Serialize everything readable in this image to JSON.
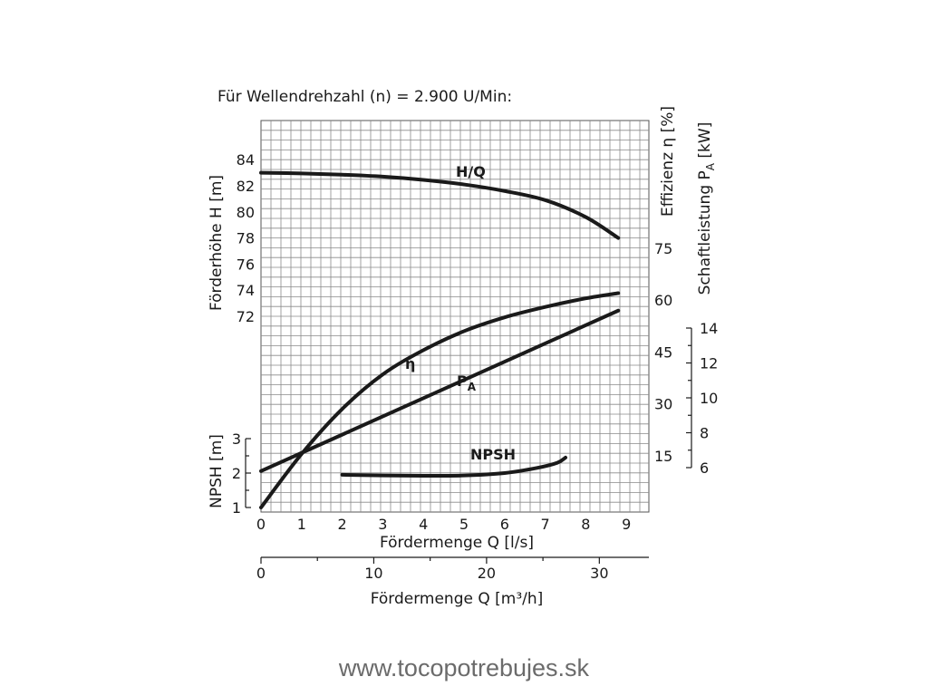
{
  "chart_data": {
    "type": "line",
    "title": "Für Wellendrehzahl (n) = 2.900 U/Min:",
    "x_axis": {
      "label": "Fördermenge Q [l/s]",
      "ticks": [
        "0",
        "1",
        "2",
        "3",
        "4",
        "5",
        "6",
        "7",
        "8",
        "9"
      ],
      "range": [
        0,
        9.5
      ]
    },
    "x2_axis": {
      "label": "Fördermenge Q [m³/h]",
      "ticks": [
        "0",
        "10",
        "20",
        "30"
      ],
      "range": [
        0,
        34.2
      ]
    },
    "left_axes": [
      {
        "label": "Förderhöhe H [m]",
        "ticks": [
          "72",
          "74",
          "76",
          "78",
          "80",
          "82",
          "84"
        ],
        "range": [
          72,
          84
        ]
      },
      {
        "label": "NPSH [m]",
        "ticks": [
          "1",
          "2",
          "3"
        ],
        "range": [
          1,
          3
        ]
      }
    ],
    "right_axes": [
      {
        "label": "Effizienz η [%]",
        "ticks": [
          "15",
          "30",
          "45",
          "60",
          "75"
        ],
        "range": [
          15,
          75
        ]
      },
      {
        "label": "Schaftleistung P",
        "label_sub": "A",
        "label_unit": "[kW]",
        "ticks": [
          "6",
          "8",
          "10",
          "12",
          "14"
        ],
        "range": [
          6,
          14
        ]
      }
    ],
    "grid": true,
    "series": [
      {
        "name": "H/Q",
        "axis": "H [m]",
        "x": [
          0,
          1,
          2,
          3,
          4,
          5,
          6,
          7,
          8,
          8.8
        ],
        "y": [
          83.0,
          82.95,
          82.85,
          82.7,
          82.45,
          82.1,
          81.6,
          80.9,
          79.6,
          78.0
        ]
      },
      {
        "name": "η",
        "axis": "η [%]",
        "x": [
          0,
          1,
          2,
          3,
          4,
          5,
          6,
          7,
          8,
          8.8
        ],
        "y": [
          0,
          15.5,
          28.5,
          38.5,
          45.5,
          51,
          55,
          58,
          60.5,
          62
        ]
      },
      {
        "name": "P",
        "name_sub": "A",
        "axis": "P_A [kW]",
        "x": [
          0,
          8.8
        ],
        "y": [
          5.8,
          15.0
        ]
      },
      {
        "name": "NPSH",
        "axis": "NPSH [m]",
        "x": [
          2.0,
          3,
          4,
          5,
          6,
          6.8,
          7.3,
          7.5
        ],
        "y": [
          1.95,
          1.93,
          1.92,
          1.93,
          2.0,
          2.15,
          2.3,
          2.45
        ]
      }
    ]
  },
  "footer": {
    "text": "www.tocopotrebujes.sk"
  }
}
